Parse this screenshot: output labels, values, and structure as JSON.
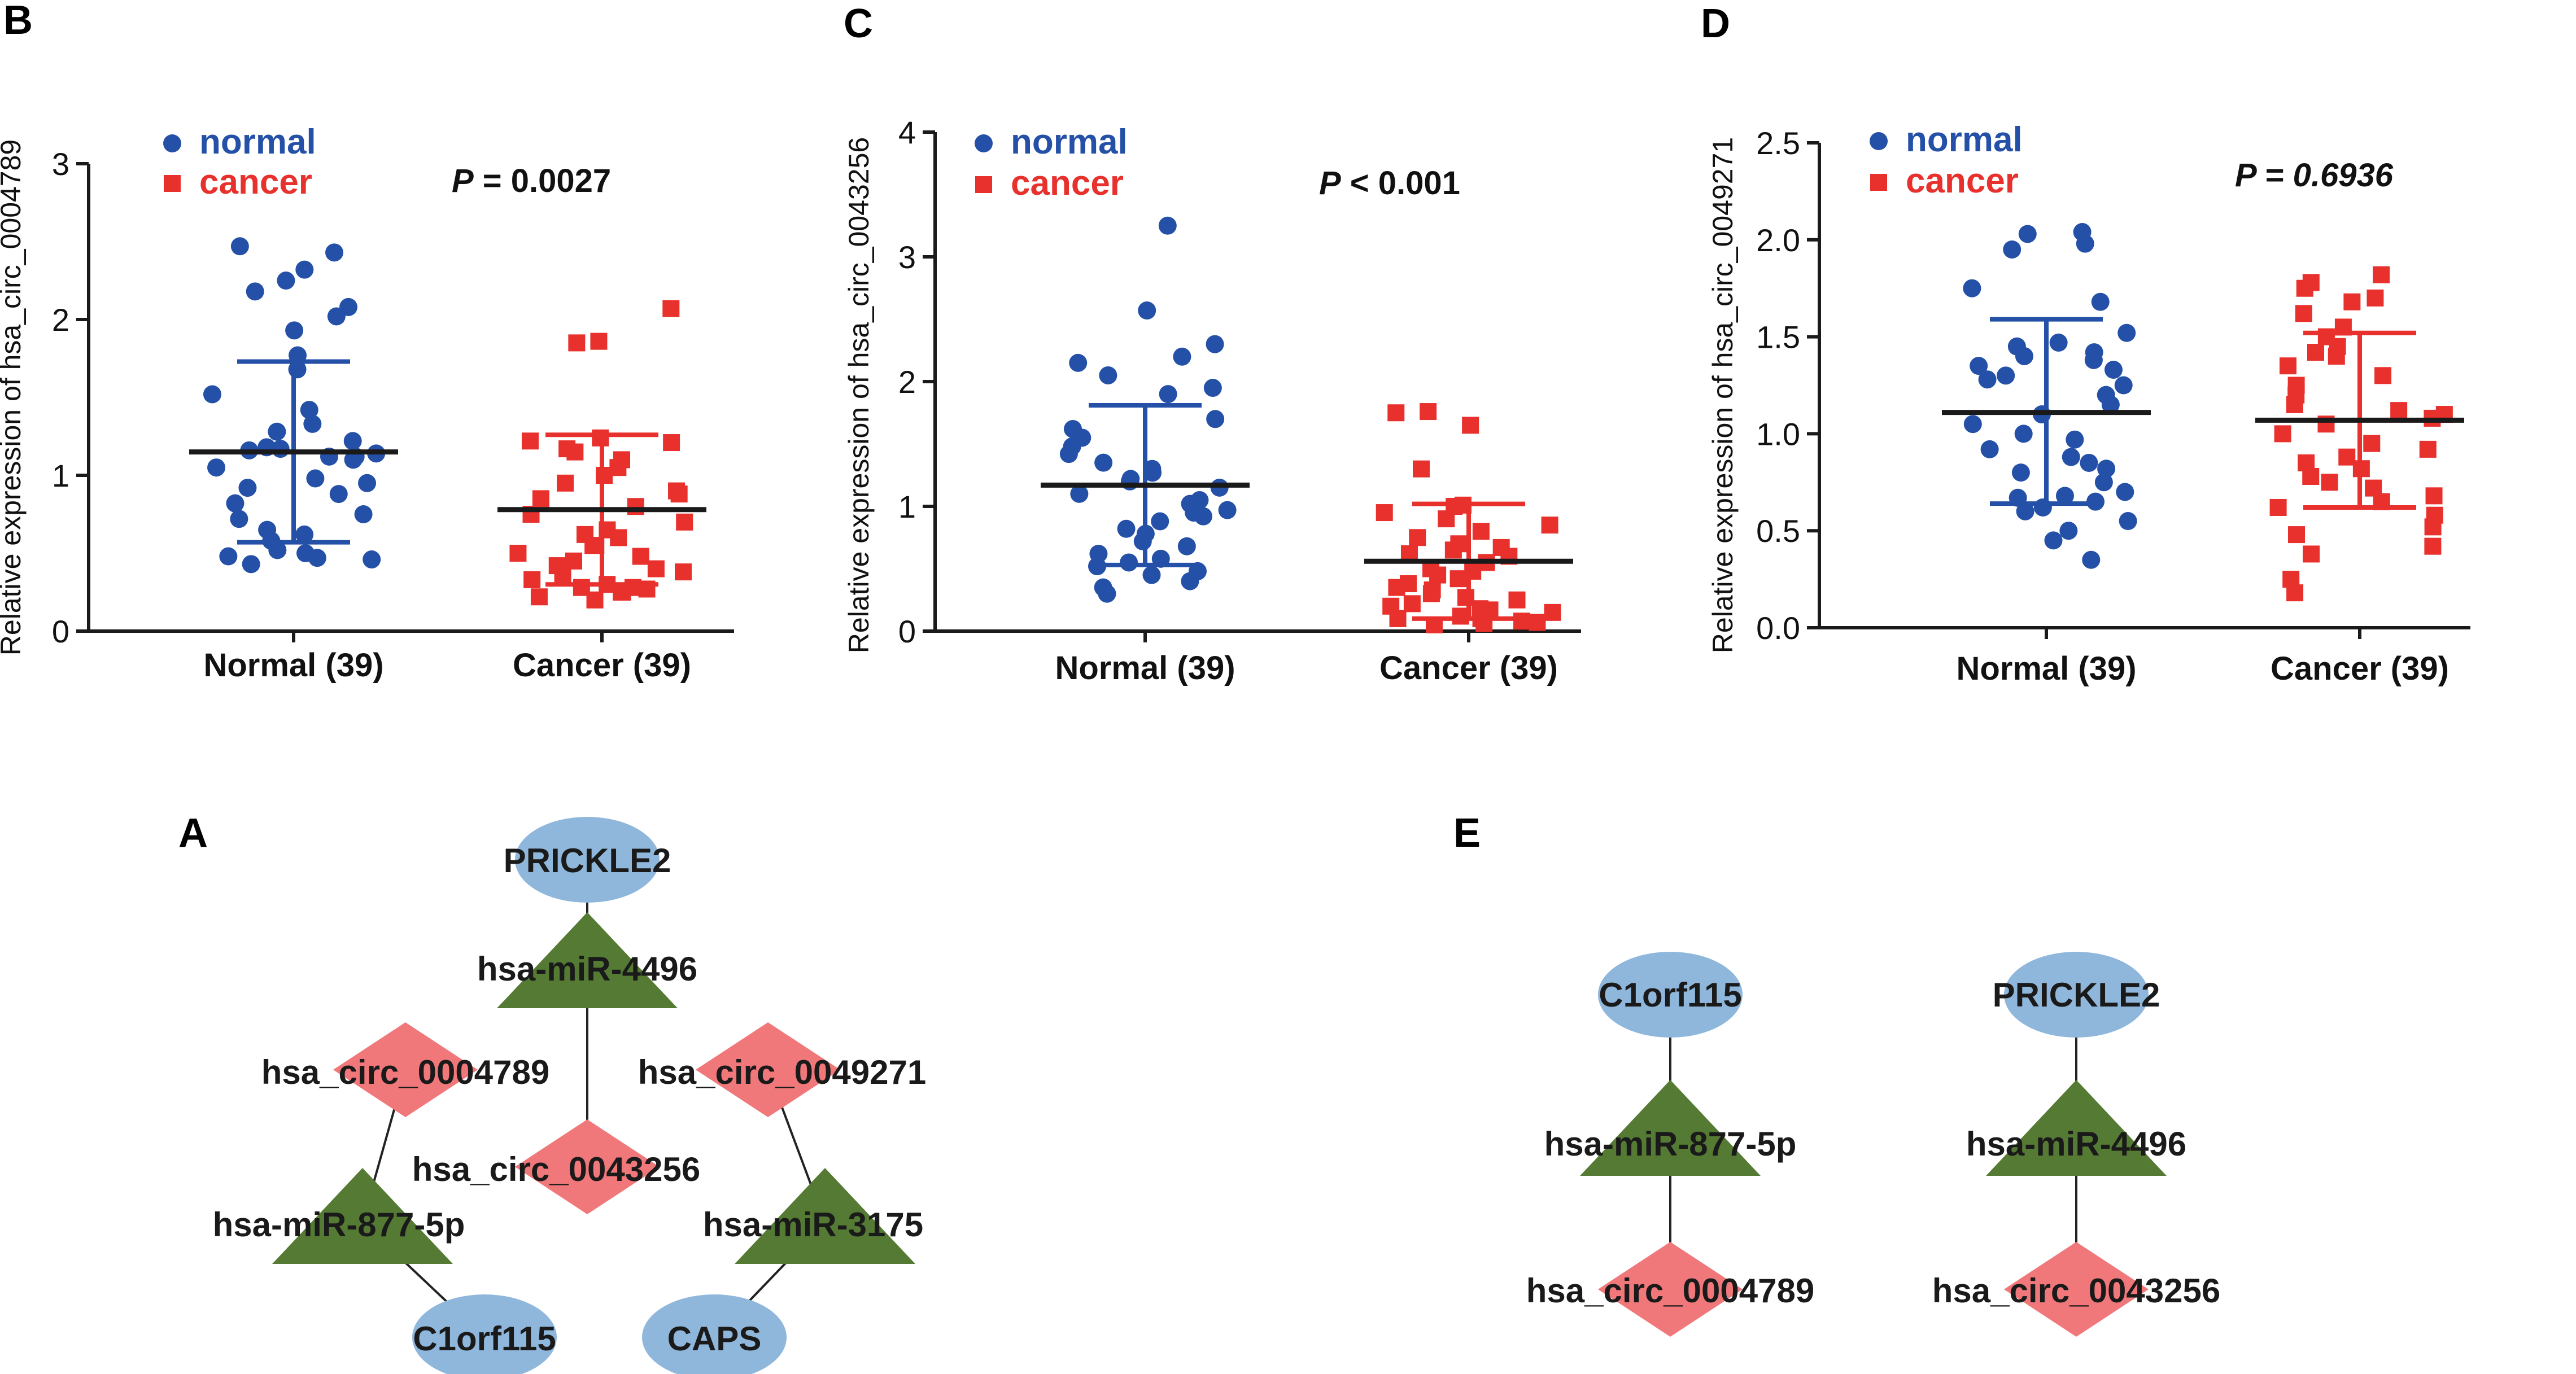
{
  "colors": {
    "normal": "#2450a8",
    "cancer": "#e8302c",
    "axis": "#1a1a1a",
    "circ_node": "#f0787a",
    "mirna_node": "#547a34",
    "gene_node": "#8fb7dc",
    "edge": "#222222"
  },
  "legend": {
    "normal": "normal",
    "cancer": "cancer"
  },
  "chart_data": [
    {
      "panel": "B",
      "type": "scatter",
      "ylabel": "Relative expression of hsa_circ_0004789",
      "ylim": [
        0,
        3
      ],
      "yticks": [
        "0",
        "1",
        "2",
        "3"
      ],
      "categories": [
        "Normal (39)",
        "Cancer (39)"
      ],
      "pvalue": {
        "prefix": "P",
        "text": " = 0.0027",
        "italic_value": false
      },
      "series": [
        {
          "name": "normal",
          "mean": 1.15,
          "sd_low": 0.57,
          "sd_high": 1.73,
          "values": [
            2.47,
            2.43,
            2.32,
            2.25,
            2.18,
            2.08,
            2.02,
            1.93,
            1.77,
            1.68,
            1.52,
            1.42,
            1.33,
            1.28,
            1.22,
            1.18,
            1.17,
            1.16,
            1.14,
            1.12,
            1.12,
            1.1,
            1.05,
            0.98,
            0.95,
            0.92,
            0.88,
            0.82,
            0.75,
            0.72,
            0.65,
            0.62,
            0.58,
            0.52,
            0.5,
            0.48,
            0.47,
            0.46,
            0.43
          ]
        },
        {
          "name": "cancer",
          "mean": 0.78,
          "sd_low": 0.3,
          "sd_high": 1.26,
          "values": [
            2.07,
            1.86,
            1.85,
            1.24,
            1.22,
            1.21,
            1.17,
            1.15,
            1.1,
            1.05,
            1.0,
            0.95,
            0.9,
            0.88,
            0.85,
            0.8,
            0.75,
            0.7,
            0.65,
            0.62,
            0.6,
            0.55,
            0.55,
            0.5,
            0.48,
            0.45,
            0.42,
            0.4,
            0.38,
            0.35,
            0.33,
            0.3,
            0.28,
            0.28,
            0.27,
            0.25,
            0.25,
            0.22,
            0.2
          ]
        }
      ]
    },
    {
      "panel": "C",
      "type": "scatter",
      "ylabel": "Relative expression of hsa_circ_0043256",
      "ylim": [
        0,
        4
      ],
      "yticks": [
        "0",
        "1",
        "2",
        "3",
        "4"
      ],
      "categories": [
        "Normal (39)",
        "Cancer (39)"
      ],
      "pvalue": {
        "prefix": "P",
        "text": " < 0.001",
        "italic_value": false
      },
      "series": [
        {
          "name": "normal",
          "mean": 1.17,
          "sd_low": 0.53,
          "sd_high": 1.81,
          "values": [
            3.25,
            2.57,
            2.3,
            2.2,
            2.15,
            2.05,
            1.95,
            1.9,
            1.7,
            1.62,
            1.55,
            1.48,
            1.42,
            1.35,
            1.3,
            1.27,
            1.22,
            1.2,
            1.15,
            1.1,
            1.05,
            1.02,
            0.97,
            0.95,
            0.92,
            0.88,
            0.82,
            0.78,
            0.72,
            0.68,
            0.62,
            0.58,
            0.55,
            0.52,
            0.48,
            0.45,
            0.4,
            0.35,
            0.3
          ]
        },
        {
          "name": "cancer",
          "mean": 0.56,
          "sd_low": 0.1,
          "sd_high": 1.02,
          "values": [
            1.76,
            1.75,
            1.65,
            1.3,
            1.01,
            1.0,
            0.95,
            0.9,
            0.85,
            0.8,
            0.75,
            0.7,
            0.67,
            0.65,
            0.62,
            0.6,
            0.55,
            0.5,
            0.48,
            0.45,
            0.42,
            0.38,
            0.35,
            0.33,
            0.3,
            0.27,
            0.25,
            0.22,
            0.2,
            0.18,
            0.17,
            0.15,
            0.12,
            0.1,
            0.1,
            0.08,
            0.07,
            0.06,
            0.05
          ]
        }
      ]
    },
    {
      "panel": "D",
      "type": "scatter",
      "ylabel": "Relative expression of hsa_circ_0049271",
      "ylim": [
        0,
        2.5
      ],
      "yticks": [
        "0.0",
        "0.5",
        "1.0",
        "1.5",
        "2.0",
        "2.5"
      ],
      "categories": [
        "Normal (39)",
        "Cancer (39)"
      ],
      "pvalue": {
        "prefix": "P",
        "text": " = 0.6936",
        "italic_value": true
      },
      "series": [
        {
          "name": "normal",
          "mean": 1.11,
          "sd_low": 0.64,
          "sd_high": 1.59,
          "values": [
            2.04,
            2.03,
            1.98,
            1.95,
            1.75,
            1.68,
            1.52,
            1.47,
            1.45,
            1.42,
            1.4,
            1.38,
            1.35,
            1.33,
            1.3,
            1.28,
            1.25,
            1.2,
            1.15,
            1.1,
            1.05,
            1.0,
            0.97,
            0.92,
            0.88,
            0.85,
            0.82,
            0.8,
            0.75,
            0.7,
            0.68,
            0.67,
            0.65,
            0.62,
            0.6,
            0.55,
            0.5,
            0.45,
            0.35
          ]
        },
        {
          "name": "cancer",
          "mean": 1.07,
          "sd_low": 0.62,
          "sd_high": 1.52,
          "values": [
            1.82,
            1.78,
            1.75,
            1.7,
            1.68,
            1.62,
            1.55,
            1.5,
            1.45,
            1.42,
            1.4,
            1.35,
            1.3,
            1.25,
            1.2,
            1.15,
            1.12,
            1.1,
            1.08,
            1.05,
            1.0,
            0.95,
            0.92,
            0.88,
            0.85,
            0.82,
            0.78,
            0.75,
            0.72,
            0.68,
            0.65,
            0.62,
            0.58,
            0.52,
            0.48,
            0.42,
            0.38,
            0.25,
            0.18
          ]
        }
      ]
    }
  ],
  "networks": {
    "A": {
      "label": "A",
      "nodes": [
        {
          "id": "PRICKLE2",
          "label": "PRICKLE2",
          "type": "gene"
        },
        {
          "id": "miR4496",
          "label": "hsa-miR-4496",
          "type": "mirna"
        },
        {
          "id": "c0004789",
          "label": "hsa_circ_0004789",
          "type": "circ"
        },
        {
          "id": "c0049271",
          "label": "hsa_circ_0049271",
          "type": "circ"
        },
        {
          "id": "c0043256",
          "label": "hsa_circ_0043256",
          "type": "circ"
        },
        {
          "id": "miR8775p",
          "label": "hsa-miR-877-5p",
          "type": "mirna"
        },
        {
          "id": "miR3175",
          "label": "hsa-miR-3175",
          "type": "mirna"
        },
        {
          "id": "C1orf115",
          "label": "C1orf115",
          "type": "gene"
        },
        {
          "id": "CAPS",
          "label": "CAPS",
          "type": "gene"
        }
      ],
      "edges": [
        [
          "PRICKLE2",
          "miR4496"
        ],
        [
          "miR4496",
          "c0043256"
        ],
        [
          "c0004789",
          "miR8775p"
        ],
        [
          "miR8775p",
          "C1orf115"
        ],
        [
          "c0049271",
          "miR3175"
        ],
        [
          "miR3175",
          "CAPS"
        ]
      ]
    },
    "E": {
      "label": "E",
      "nodes": [
        {
          "id": "C1orf115",
          "label": "C1orf115",
          "type": "gene"
        },
        {
          "id": "miR8775p",
          "label": "hsa-miR-877-5p",
          "type": "mirna"
        },
        {
          "id": "c0004789",
          "label": "hsa_circ_0004789",
          "type": "circ"
        },
        {
          "id": "PRICKLE2",
          "label": "PRICKLE2",
          "type": "gene"
        },
        {
          "id": "miR4496",
          "label": "hsa-miR-4496",
          "type": "mirna"
        },
        {
          "id": "c0043256",
          "label": "hsa_circ_0043256",
          "type": "circ"
        }
      ],
      "edges": [
        [
          "C1orf115",
          "miR8775p"
        ],
        [
          "miR8775p",
          "c0004789"
        ],
        [
          "PRICKLE2",
          "miR4496"
        ],
        [
          "miR4496",
          "c0043256"
        ]
      ]
    }
  }
}
